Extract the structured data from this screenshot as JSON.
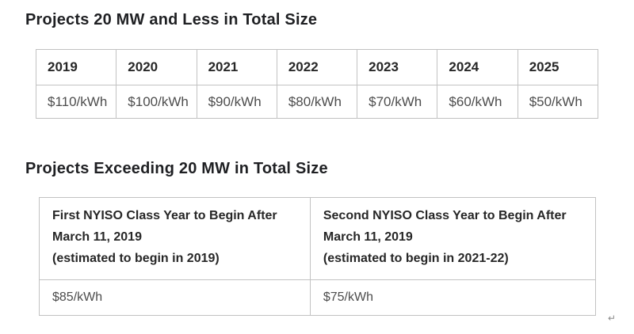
{
  "small_projects": {
    "title": "Projects 20 MW and Less in Total Size",
    "years": [
      "2019",
      "2020",
      "2021",
      "2022",
      "2023",
      "2024",
      "2025"
    ],
    "prices": [
      "$110/kWh",
      "$100/kWh",
      "$90/kWh",
      "$80/kWh",
      "$70/kWh",
      "$60/kWh",
      "$50/kWh"
    ]
  },
  "large_projects": {
    "title": "Projects Exceeding 20 MW in Total Size",
    "columns": [
      {
        "heading": "First NYISO Class Year to Begin After March 11, 2019",
        "note": "(estimated to begin in 2019)",
        "price": "$85/kWh"
      },
      {
        "heading": "Second NYISO Class Year to Begin After March 11, 2019",
        "note": "(estimated to begin in 2021-22)",
        "price": "$75/kWh"
      }
    ]
  },
  "misc": {
    "return_mark": "↵"
  },
  "colors": {
    "title_text": "#1f2023",
    "header_text": "#272727",
    "value_text": "#4d4d4d",
    "table_border": "#c2c2c2",
    "background": "#ffffff"
  }
}
